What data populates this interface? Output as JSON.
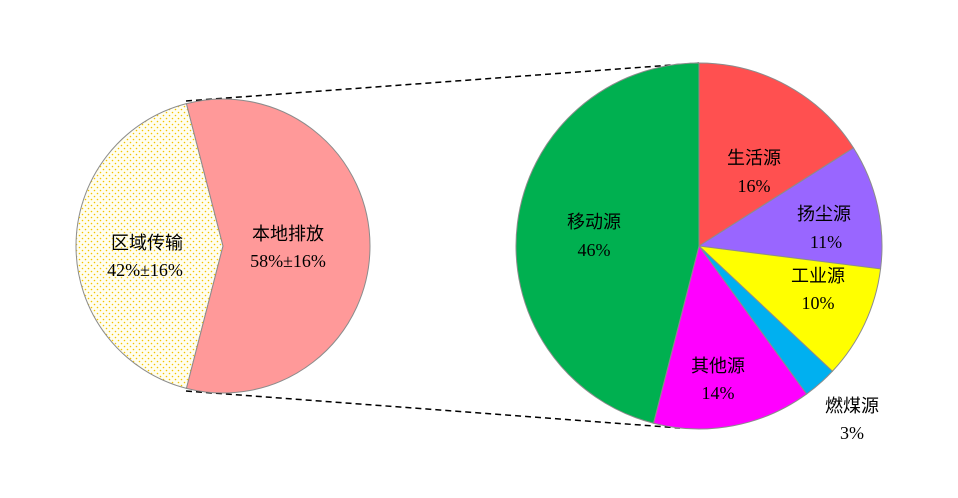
{
  "chart_data": [
    {
      "type": "pie",
      "slices": [
        {
          "label": "区域传输",
          "value": 42,
          "value_label": "42%±16%",
          "color": "#FFFCE8",
          "pattern": "dotted-yellow"
        },
        {
          "label": "本地排放",
          "value": 58,
          "value_label": "58%±16%",
          "color": "#FF9999"
        }
      ]
    },
    {
      "type": "pie",
      "breakdown_of": "本地排放",
      "slices": [
        {
          "label": "生活源",
          "value": 16,
          "value_label": "16%",
          "color": "#FF5050"
        },
        {
          "label": "扬尘源",
          "value": 11,
          "value_label": "11%",
          "color": "#9966FF"
        },
        {
          "label": "工业源",
          "value": 10,
          "value_label": "10%",
          "color": "#FFFF00"
        },
        {
          "label": "燃煤源",
          "value": 3,
          "value_label": "3%",
          "color": "#00B0F0"
        },
        {
          "label": "其他源",
          "value": 14,
          "value_label": "14%",
          "color": "#FF00FF"
        },
        {
          "label": "移动源",
          "value": 46,
          "value_label": "46%",
          "color": "#00B050"
        }
      ]
    }
  ]
}
